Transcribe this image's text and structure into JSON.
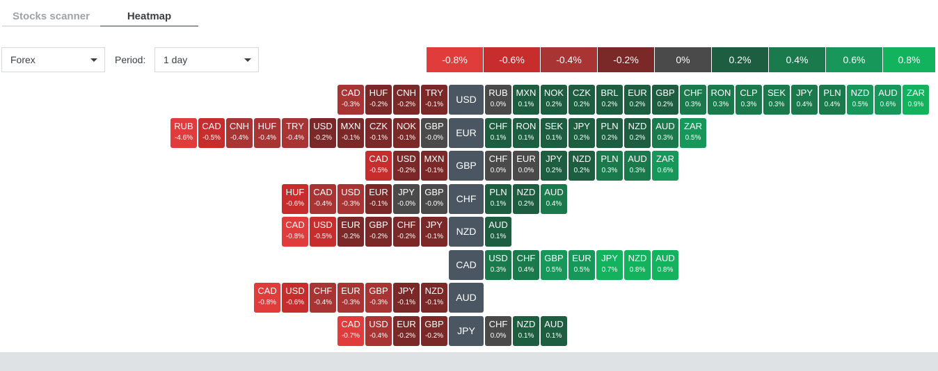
{
  "tabs": [
    {
      "label": "Stocks scanner"
    },
    {
      "label": "Heatmap"
    }
  ],
  "controls": {
    "market": "Forex",
    "period_label": "Period:",
    "period": "1 day"
  },
  "legend": [
    {
      "label": "-0.8%",
      "color": "#e03c3c"
    },
    {
      "label": "-0.6%",
      "color": "#c72d2d"
    },
    {
      "label": "-0.4%",
      "color": "#a83434"
    },
    {
      "label": "-0.2%",
      "color": "#7a2828"
    },
    {
      "label": "0%",
      "color": "#4a4a4a"
    },
    {
      "label": "0.2%",
      "color": "#1d5e40"
    },
    {
      "label": "0.4%",
      "color": "#1b7a4c"
    },
    {
      "label": "0.6%",
      "color": "#17985a"
    },
    {
      "label": "0.8%",
      "color": "#12b35c"
    }
  ],
  "rows": [
    {
      "base": "USD",
      "left": [
        {
          "s": "CAD",
          "v": "-0.3%"
        },
        {
          "s": "HUF",
          "v": "-0.2%"
        },
        {
          "s": "CNH",
          "v": "-0.2%"
        },
        {
          "s": "TRY",
          "v": "-0.1%"
        }
      ],
      "right": [
        {
          "s": "RUB",
          "v": "0.0%"
        },
        {
          "s": "MXN",
          "v": "0.1%"
        },
        {
          "s": "NOK",
          "v": "0.2%"
        },
        {
          "s": "CZK",
          "v": "0.2%"
        },
        {
          "s": "BRL",
          "v": "0.2%"
        },
        {
          "s": "EUR",
          "v": "0.2%"
        },
        {
          "s": "GBP",
          "v": "0.2%"
        },
        {
          "s": "CHF",
          "v": "0.3%"
        },
        {
          "s": "RON",
          "v": "0.3%"
        },
        {
          "s": "CLP",
          "v": "0.3%"
        },
        {
          "s": "SEK",
          "v": "0.3%"
        },
        {
          "s": "JPY",
          "v": "0.4%"
        },
        {
          "s": "PLN",
          "v": "0.4%"
        },
        {
          "s": "NZD",
          "v": "0.5%"
        },
        {
          "s": "AUD",
          "v": "0.6%"
        },
        {
          "s": "ZAR",
          "v": "0.9%"
        }
      ]
    },
    {
      "base": "EUR",
      "left": [
        {
          "s": "RUB",
          "v": "-4.6%"
        },
        {
          "s": "CAD",
          "v": "-0.5%"
        },
        {
          "s": "CNH",
          "v": "-0.4%"
        },
        {
          "s": "HUF",
          "v": "-0.4%"
        },
        {
          "s": "TRY",
          "v": "-0.4%"
        },
        {
          "s": "USD",
          "v": "-0.2%"
        },
        {
          "s": "MXN",
          "v": "-0.1%"
        },
        {
          "s": "CZK",
          "v": "-0.1%"
        },
        {
          "s": "NOK",
          "v": "-0.1%"
        },
        {
          "s": "GBP",
          "v": "-0.0%"
        }
      ],
      "right": [
        {
          "s": "CHF",
          "v": "0.1%"
        },
        {
          "s": "RON",
          "v": "0.1%"
        },
        {
          "s": "SEK",
          "v": "0.1%"
        },
        {
          "s": "JPY",
          "v": "0.2%"
        },
        {
          "s": "PLN",
          "v": "0.2%"
        },
        {
          "s": "NZD",
          "v": "0.2%"
        },
        {
          "s": "AUD",
          "v": "0.3%"
        },
        {
          "s": "ZAR",
          "v": "0.5%"
        }
      ]
    },
    {
      "base": "GBP",
      "left": [
        {
          "s": "CAD",
          "v": "-0.5%"
        },
        {
          "s": "USD",
          "v": "-0.2%"
        },
        {
          "s": "MXN",
          "v": "-0.1%"
        }
      ],
      "right": [
        {
          "s": "CHF",
          "v": "0.0%"
        },
        {
          "s": "EUR",
          "v": "0.0%"
        },
        {
          "s": "JPY",
          "v": "0.2%"
        },
        {
          "s": "NZD",
          "v": "0.2%"
        },
        {
          "s": "PLN",
          "v": "0.3%"
        },
        {
          "s": "AUD",
          "v": "0.3%"
        },
        {
          "s": "ZAR",
          "v": "0.6%"
        }
      ]
    },
    {
      "base": "CHF",
      "left": [
        {
          "s": "HUF",
          "v": "-0.6%"
        },
        {
          "s": "CAD",
          "v": "-0.4%"
        },
        {
          "s": "USD",
          "v": "-0.3%"
        },
        {
          "s": "EUR",
          "v": "-0.1%"
        },
        {
          "s": "JPY",
          "v": "-0.0%"
        },
        {
          "s": "GBP",
          "v": "-0.0%"
        }
      ],
      "right": [
        {
          "s": "PLN",
          "v": "0.1%"
        },
        {
          "s": "NZD",
          "v": "0.2%"
        },
        {
          "s": "AUD",
          "v": "0.4%"
        }
      ]
    },
    {
      "base": "NZD",
      "left": [
        {
          "s": "CAD",
          "v": "-0.8%"
        },
        {
          "s": "USD",
          "v": "-0.5%"
        },
        {
          "s": "EUR",
          "v": "-0.2%"
        },
        {
          "s": "GBP",
          "v": "-0.2%"
        },
        {
          "s": "CHF",
          "v": "-0.2%"
        },
        {
          "s": "JPY",
          "v": "-0.1%"
        }
      ],
      "right": [
        {
          "s": "AUD",
          "v": "0.1%"
        }
      ]
    },
    {
      "base": "CAD",
      "left": [],
      "right": [
        {
          "s": "USD",
          "v": "0.3%"
        },
        {
          "s": "CHF",
          "v": "0.4%"
        },
        {
          "s": "GBP",
          "v": "0.5%"
        },
        {
          "s": "EUR",
          "v": "0.5%"
        },
        {
          "s": "JPY",
          "v": "0.7%"
        },
        {
          "s": "NZD",
          "v": "0.8%"
        },
        {
          "s": "AUD",
          "v": "0.8%"
        }
      ]
    },
    {
      "base": "AUD",
      "left": [
        {
          "s": "CAD",
          "v": "-0.8%"
        },
        {
          "s": "USD",
          "v": "-0.6%"
        },
        {
          "s": "CHF",
          "v": "-0.4%"
        },
        {
          "s": "EUR",
          "v": "-0.3%"
        },
        {
          "s": "GBP",
          "v": "-0.3%"
        },
        {
          "s": "JPY",
          "v": "-0.1%"
        },
        {
          "s": "NZD",
          "v": "-0.1%"
        }
      ],
      "right": []
    },
    {
      "base": "JPY",
      "left": [
        {
          "s": "CAD",
          "v": "-0.7%"
        },
        {
          "s": "USD",
          "v": "-0.4%"
        },
        {
          "s": "EUR",
          "v": "-0.2%"
        },
        {
          "s": "GBP",
          "v": "-0.2%"
        }
      ],
      "right": [
        {
          "s": "CHF",
          "v": "0.0%"
        },
        {
          "s": "NZD",
          "v": "0.1%"
        },
        {
          "s": "AUD",
          "v": "0.1%"
        }
      ]
    }
  ]
}
